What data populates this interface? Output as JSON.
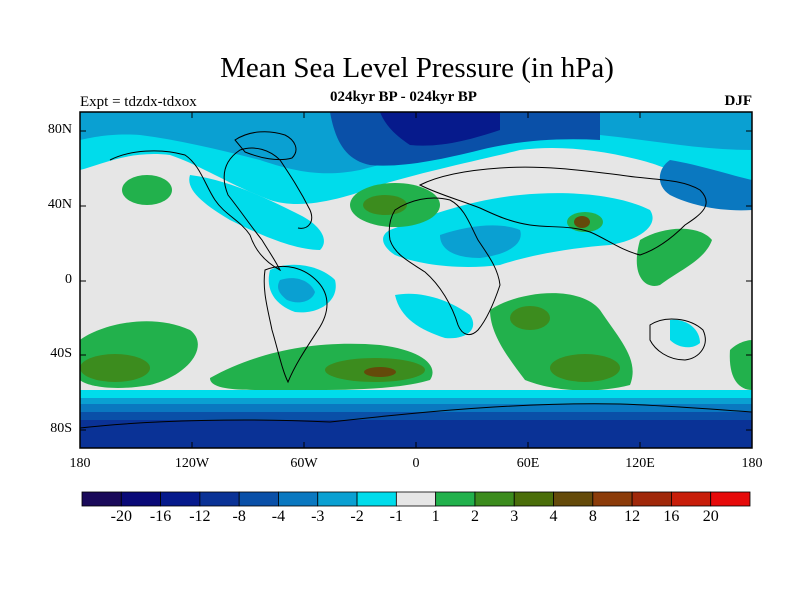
{
  "title": "Mean Sea Level Pressure (in hPa)",
  "subtitle": "024kyr BP - 024kyr BP",
  "expt_label": "Expt = tdzdx-tdxox",
  "season": "DJF",
  "axes": {
    "y_ticks": [
      "80N",
      "40N",
      "0",
      "40S",
      "80S"
    ],
    "x_ticks": [
      "180",
      "120W",
      "60W",
      "0",
      "60E",
      "120E",
      "180"
    ]
  },
  "colorbar": {
    "colors": [
      "#1a0a5a",
      "#0a0a78",
      "#061a8c",
      "#0a3296",
      "#0a50a8",
      "#0a78c0",
      "#0aa0d2",
      "#00dceb",
      "#e6e6e6",
      "#22b14c",
      "#3c8c1e",
      "#4a6e0a",
      "#644a0a",
      "#8c3c0a",
      "#a0280a",
      "#c81e0a",
      "#e60a0a"
    ],
    "labels": [
      "-20",
      "-16",
      "-12",
      "-8",
      "-4",
      "-3",
      "-2",
      "-1",
      "1",
      "2",
      "3",
      "4",
      "8",
      "12",
      "16",
      "20"
    ]
  }
}
